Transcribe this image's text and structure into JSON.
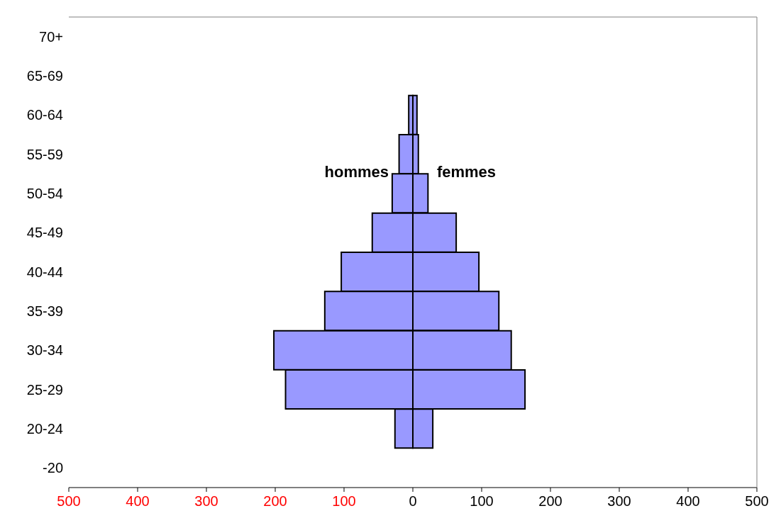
{
  "chart_data": {
    "type": "bar",
    "orientation": "horizontal",
    "stacked": true,
    "categories": [
      "70+",
      "65-69",
      "60-64",
      "55-59",
      "50-54",
      "45-49",
      "40-44",
      "35-39",
      "30-34",
      "25-29",
      "20-24",
      "-20"
    ],
    "series": [
      {
        "name": "hommes",
        "color": "#9999ff",
        "values": [
          0,
          0,
          -6,
          -20,
          -30,
          -59,
          -104,
          -128,
          -202,
          -185,
          -26,
          0
        ]
      },
      {
        "name": "femmes",
        "color": "#9999ff",
        "values": [
          0,
          0,
          6,
          8,
          22,
          63,
          96,
          125,
          143,
          163,
          29,
          0
        ]
      }
    ],
    "xlim": [
      -500,
      500
    ],
    "xticks": [
      {
        "value": -500,
        "label": "500"
      },
      {
        "value": -400,
        "label": "400"
      },
      {
        "value": -300,
        "label": "300"
      },
      {
        "value": -200,
        "label": "200"
      },
      {
        "value": -100,
        "label": "100"
      },
      0,
      100,
      200,
      300,
      400,
      500
    ],
    "grid": false
  }
}
